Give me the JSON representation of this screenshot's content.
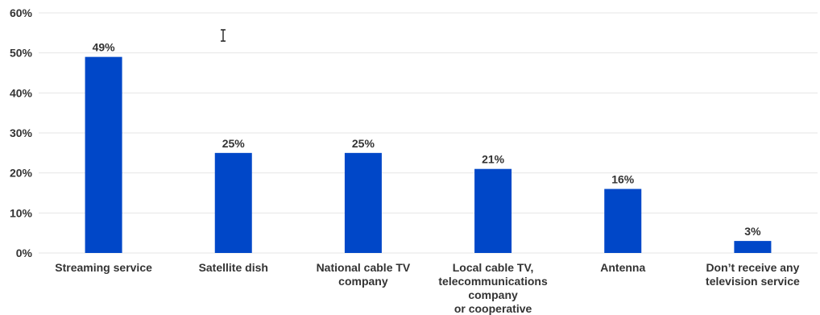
{
  "chart_data": {
    "type": "bar",
    "categories": [
      [
        "Streaming service"
      ],
      [
        "Satellite dish"
      ],
      [
        "National cable TV",
        "company"
      ],
      [
        "Local cable TV,",
        "telecommunications",
        "company",
        "or cooperative"
      ],
      [
        "Antenna"
      ],
      [
        "Don’t receive any",
        "television service"
      ]
    ],
    "values": [
      49,
      25,
      25,
      21,
      16,
      3
    ],
    "data_labels": [
      "49%",
      "25%",
      "25%",
      "21%",
      "16%",
      "3%"
    ],
    "ylim": [
      0,
      60
    ],
    "yticks": [
      0,
      10,
      20,
      30,
      40,
      50,
      60
    ],
    "ytick_labels": [
      "0%",
      "10%",
      "20%",
      "30%",
      "40%",
      "50%",
      "60%"
    ],
    "grid": true,
    "bar_color": "#0047c8"
  }
}
